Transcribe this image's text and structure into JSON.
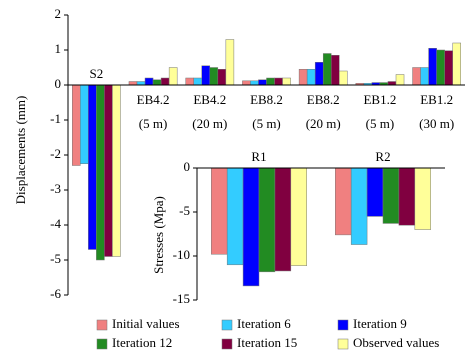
{
  "chart_data": [
    {
      "type": "bar",
      "ylabel": "Displacements (mm)",
      "categories": [
        [
          "S2"
        ],
        [
          "EB4.2",
          "(5 m)"
        ],
        [
          "EB4.2",
          "(20 m)"
        ],
        [
          "EB8.2",
          "(5 m)"
        ],
        [
          "EB8.2",
          "(20 m)"
        ],
        [
          "EB1.2",
          "(5 m)"
        ],
        [
          "EB1.2",
          "(30 m)"
        ]
      ],
      "series": [
        {
          "name": "Initial values",
          "color": "#f08080",
          "values": [
            -2.3,
            0.1,
            0.2,
            0.12,
            0.45,
            0.05,
            0.5
          ]
        },
        {
          "name": "Iteration 6",
          "color": "#33ccff",
          "values": [
            -2.25,
            0.1,
            0.2,
            0.12,
            0.45,
            0.05,
            0.5
          ]
        },
        {
          "name": "Iteration 9",
          "color": "#0000ff",
          "values": [
            -4.7,
            0.2,
            0.55,
            0.15,
            0.65,
            0.07,
            1.05
          ]
        },
        {
          "name": "Iteration 12",
          "color": "#228b22",
          "values": [
            -5.0,
            0.15,
            0.5,
            0.2,
            0.9,
            0.07,
            1.0
          ]
        },
        {
          "name": "Iteration 15",
          "color": "#800040",
          "values": [
            -4.9,
            0.2,
            0.45,
            0.2,
            0.85,
            0.1,
            0.98
          ]
        },
        {
          "name": "Observed values",
          "color": "#ffff99",
          "values": [
            -4.9,
            0.5,
            1.3,
            0.2,
            0.4,
            0.3,
            1.2
          ]
        }
      ],
      "ylim": [
        -6,
        2
      ],
      "yticks": [
        -6,
        -5,
        -4,
        -3,
        -2,
        -1,
        0,
        1,
        2
      ]
    },
    {
      "type": "bar",
      "ylabel": "Stresses (Mpa)",
      "categories": [
        [
          "R1"
        ],
        [
          "R2"
        ]
      ],
      "series": [
        {
          "color": "#f08080",
          "values": [
            -9.8,
            -7.6
          ]
        },
        {
          "color": "#33ccff",
          "values": [
            -11,
            -8.7
          ]
        },
        {
          "color": "#0000ff",
          "values": [
            -13.4,
            -5.5
          ]
        },
        {
          "color": "#228b22",
          "values": [
            -11.8,
            -6.3
          ]
        },
        {
          "color": "#800040",
          "values": [
            -11.7,
            -6.5
          ]
        },
        {
          "color": "#ffff99",
          "values": [
            -11.1,
            -7.0
          ]
        }
      ],
      "ylim": [
        -15,
        0
      ],
      "yticks": [
        -15,
        -10,
        -5,
        0
      ]
    }
  ]
}
